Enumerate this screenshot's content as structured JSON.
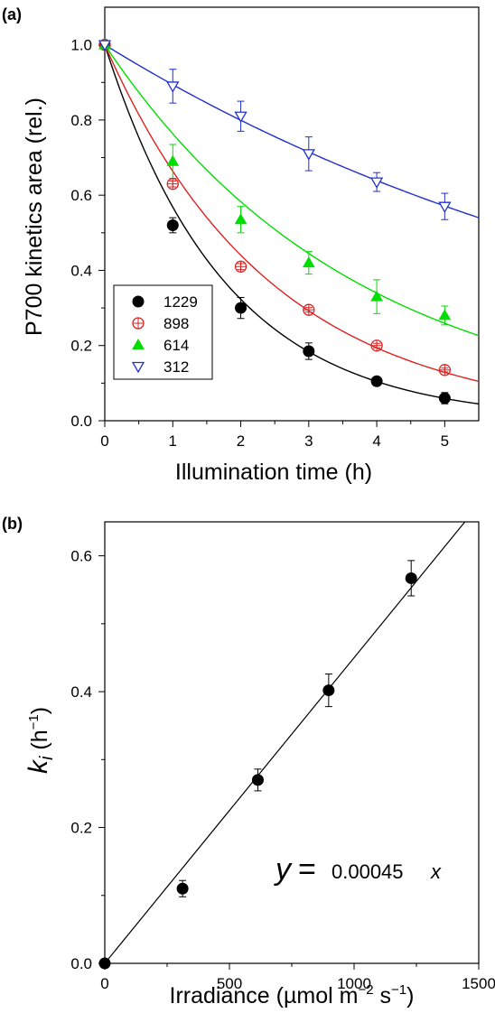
{
  "chart_data": [
    {
      "panel_label": "(a)",
      "type": "scatter",
      "xlabel": "Illumination time   (h)",
      "ylabel": "P700 kinetics area   (rel.)",
      "xlim": [
        0,
        5.5
      ],
      "ylim": [
        0,
        1.1
      ],
      "xticks": [
        "0",
        "1",
        "2",
        "3",
        "4",
        "5"
      ],
      "yticks": [
        "0.0",
        "0.2",
        "0.4",
        "0.6",
        "0.8",
        "1.0"
      ],
      "legend_position": "lower-left",
      "series": [
        {
          "name": "1229",
          "color": "#000000",
          "marker": "filled-circle",
          "k": 0.565,
          "x": [
            0,
            1,
            2,
            3,
            4,
            5
          ],
          "y": [
            1.0,
            0.52,
            0.3,
            0.185,
            0.105,
            0.06
          ],
          "err": [
            0,
            0.02,
            0.028,
            0.022,
            0.008,
            0.015
          ]
        },
        {
          "name": "898",
          "color": "#e02020",
          "marker": "open-circle-cross",
          "k": 0.41,
          "x": [
            0,
            1,
            2,
            3,
            4,
            5
          ],
          "y": [
            1.0,
            0.63,
            0.41,
            0.295,
            0.2,
            0.135
          ],
          "err": [
            0,
            0.008,
            0.008,
            0.006,
            0.006,
            0.005
          ]
        },
        {
          "name": "614",
          "color": "#00dd00",
          "marker": "filled-triangle-up",
          "k": 0.27,
          "x": [
            0,
            1,
            2,
            3,
            4,
            5
          ],
          "y": [
            1.0,
            0.69,
            0.535,
            0.42,
            0.33,
            0.28
          ],
          "err": [
            0,
            0.045,
            0.035,
            0.03,
            0.045,
            0.025
          ]
        },
        {
          "name": "312",
          "color": "#2030d0",
          "marker": "open-triangle-down",
          "k": 0.112,
          "x": [
            0,
            1,
            2,
            3,
            4,
            5
          ],
          "y": [
            1.0,
            0.89,
            0.81,
            0.71,
            0.635,
            0.57
          ],
          "err": [
            0,
            0.045,
            0.04,
            0.045,
            0.025,
            0.035
          ]
        }
      ]
    },
    {
      "panel_label": "(b)",
      "type": "scatter",
      "xlabel": "Irradiance   (µmol m⁻² s⁻¹)",
      "ylabel": "ki   (h⁻¹)",
      "xlim": [
        0,
        1500
      ],
      "ylim": [
        0,
        0.65
      ],
      "xticks": [
        "0",
        "500",
        "1000",
        "1500"
      ],
      "yticks": [
        "0.0",
        "0.2",
        "0.4",
        "0.6"
      ],
      "points": {
        "x": [
          0,
          312,
          614,
          898,
          1229
        ],
        "y": [
          0,
          0.11,
          0.27,
          0.402,
          0.567
        ],
        "err": [
          0,
          0.012,
          0.016,
          0.024,
          0.026
        ]
      },
      "fit": {
        "slope": 0.00045
      },
      "equation": {
        "y": "y",
        "eq": "=",
        "value": "0.00045",
        "x": "x"
      }
    }
  ]
}
